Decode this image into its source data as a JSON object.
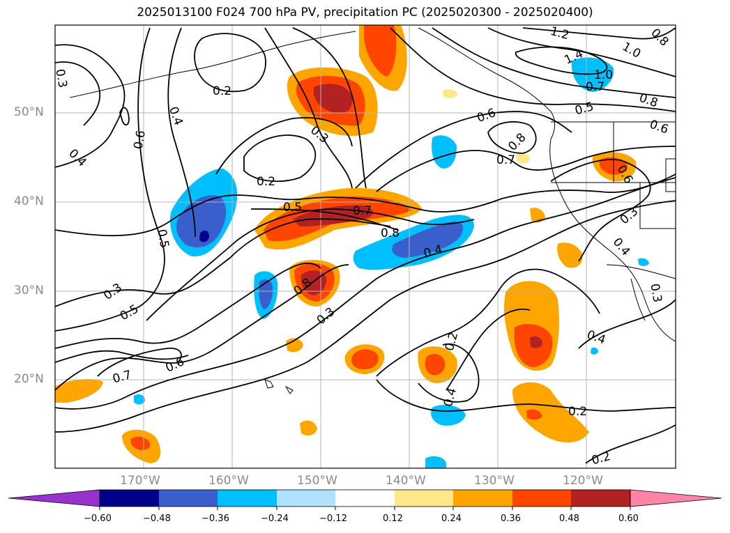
{
  "title": "2025013100 F024 700 hPa PV, precipitation PC (2025020300 - 2025020400)",
  "map": {
    "lat_labels": [
      "50°N",
      "40°N",
      "30°N",
      "20°N"
    ],
    "lon_labels": [
      "170°W",
      "160°W",
      "150°W",
      "140°W",
      "130°W",
      "120°W"
    ],
    "extent": {
      "lon_min": -180,
      "lon_max": -110,
      "lat_min": 10,
      "lat_max": 59
    }
  },
  "colorbar": {
    "labels": [
      "−0.60",
      "−0.48",
      "−0.36",
      "−0.24",
      "−0.12",
      "0.12",
      "0.24",
      "0.36",
      "0.48",
      "0.60"
    ],
    "colors": [
      "#9932cc",
      "#00008b",
      "#3a5fcd",
      "#00bfff",
      "#b0e2ff",
      "#ffffff",
      "#ffe88a",
      "#ffa500",
      "#ff4500",
      "#b22222",
      "#ff85a8"
    ]
  },
  "contour_labels": [
    {
      "text": "0.2"
    },
    {
      "text": "0.4"
    },
    {
      "text": "0.6"
    },
    {
      "text": "0.3"
    },
    {
      "text": "0.4"
    },
    {
      "text": "0.3"
    },
    {
      "text": "0.2"
    },
    {
      "text": "0.5"
    },
    {
      "text": "0.7"
    },
    {
      "text": "0.8"
    },
    {
      "text": "0.5"
    },
    {
      "text": "0.3"
    },
    {
      "text": "0.5"
    },
    {
      "text": "0.7"
    },
    {
      "text": "0.6"
    },
    {
      "text": "0.8"
    },
    {
      "text": "0.3"
    },
    {
      "text": "0.4"
    },
    {
      "text": "0.2"
    },
    {
      "text": "0.4"
    },
    {
      "text": "0.2"
    },
    {
      "text": "0.2"
    },
    {
      "text": "0.6"
    },
    {
      "text": "0.8"
    },
    {
      "text": "0.7"
    },
    {
      "text": "0.5"
    },
    {
      "text": "0.8"
    },
    {
      "text": "0.6"
    },
    {
      "text": "1.2"
    },
    {
      "text": "1.0"
    },
    {
      "text": "1.4"
    },
    {
      "text": "1.0"
    },
    {
      "text": "0.7"
    },
    {
      "text": "0.6"
    },
    {
      "text": "0.3"
    },
    {
      "text": "0.4"
    },
    {
      "text": "0.3"
    },
    {
      "text": "0.4"
    },
    {
      "text": "0.8"
    }
  ]
}
